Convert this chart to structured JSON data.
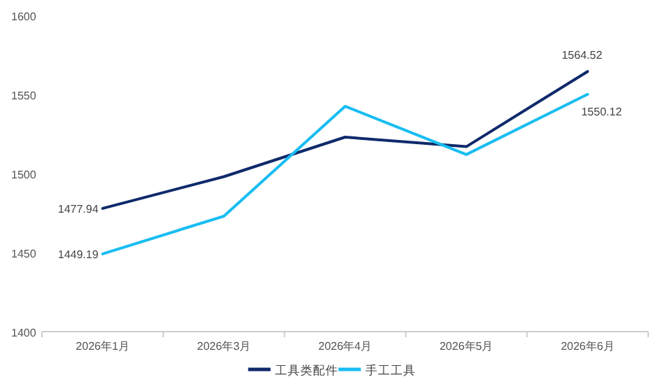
{
  "chart_data": {
    "type": "line",
    "categories": [
      "2026年1月",
      "2026年3月",
      "2026年4月",
      "2026年5月",
      "2026年6月"
    ],
    "series": [
      {
        "name": "工具类配件",
        "color": "#0f2a6b",
        "values": [
          1477.94,
          1498,
          1523,
          1517,
          1564.52
        ],
        "value_labels": [
          "1477.94",
          null,
          null,
          null,
          "1564.52"
        ]
      },
      {
        "name": "手工工具",
        "color": "#18bdf2",
        "values": [
          1449.19,
          1473,
          1542.5,
          1512,
          1550.12
        ],
        "value_labels": [
          "1449.19",
          null,
          null,
          null,
          "1550.12"
        ]
      }
    ],
    "ylim": [
      1400,
      1600
    ],
    "yticks": [
      1400,
      1450,
      1500,
      1550,
      1600
    ],
    "grid": false,
    "legend": "bottom",
    "marker": "none",
    "line_style": "solid"
  }
}
